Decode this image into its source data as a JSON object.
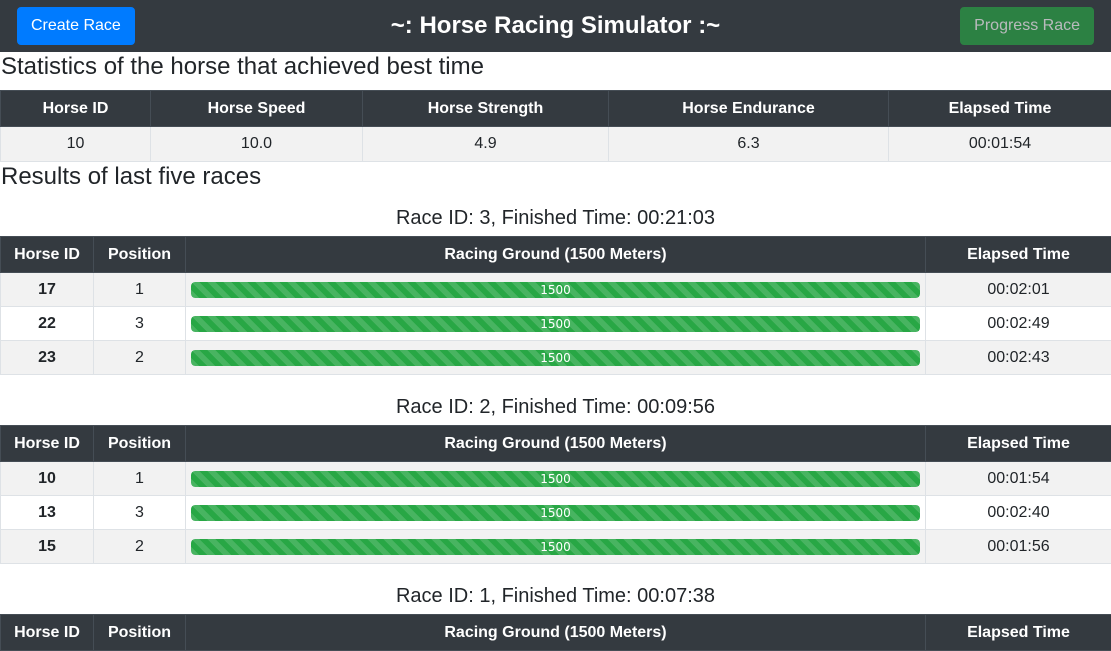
{
  "header": {
    "title": "~: Horse Racing Simulator :~",
    "create_race_label": "Create Race",
    "progress_race_label": "Progress Race"
  },
  "best": {
    "title": "Statistics of the horse that achieved best time",
    "columns": [
      "Horse ID",
      "Horse Speed",
      "Horse Strength",
      "Horse Endurance",
      "Elapsed Time"
    ],
    "row": [
      "10",
      "10.0",
      "4.9",
      "6.3",
      "00:01:54"
    ]
  },
  "last_races": {
    "title": "Results of last five races",
    "columns": [
      "Horse ID",
      "Position",
      "Racing Ground (1500 Meters)",
      "Elapsed Time"
    ],
    "races": [
      {
        "title": "Race ID: 3, Finished Time: 00:21:03",
        "rows": [
          {
            "horse_id": "17",
            "position": "1",
            "distance": "1500",
            "progress_pct": 100,
            "elapsed": "00:02:01"
          },
          {
            "horse_id": "22",
            "position": "3",
            "distance": "1500",
            "progress_pct": 100,
            "elapsed": "00:02:49"
          },
          {
            "horse_id": "23",
            "position": "2",
            "distance": "1500",
            "progress_pct": 100,
            "elapsed": "00:02:43"
          }
        ]
      },
      {
        "title": "Race ID: 2, Finished Time: 00:09:56",
        "rows": [
          {
            "horse_id": "10",
            "position": "1",
            "distance": "1500",
            "progress_pct": 100,
            "elapsed": "00:01:54"
          },
          {
            "horse_id": "13",
            "position": "3",
            "distance": "1500",
            "progress_pct": 100,
            "elapsed": "00:02:40"
          },
          {
            "horse_id": "15",
            "position": "2",
            "distance": "1500",
            "progress_pct": 100,
            "elapsed": "00:01:56"
          }
        ]
      },
      {
        "title": "Race ID: 1, Finished Time: 00:07:38",
        "rows": []
      }
    ]
  },
  "colors": {
    "navbar_bg": "#343a40",
    "primary": "#007bff",
    "success": "#28a745"
  }
}
